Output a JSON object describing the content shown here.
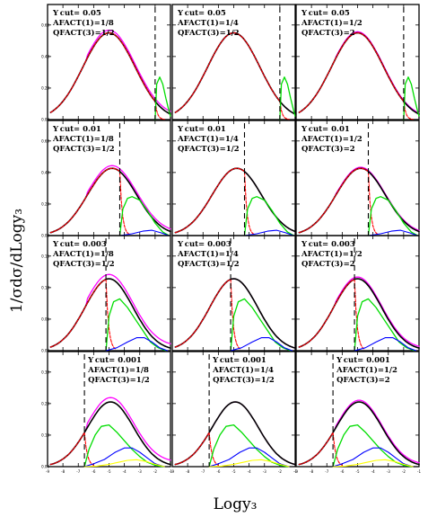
{
  "chart_data": {
    "type": "line",
    "layout": {
      "rows": 4,
      "cols": 3
    },
    "xlabel": "Logy₃",
    "ylabel": "1/σdσ/dLogy₃",
    "xlim": [
      -9,
      -1
    ],
    "x_tick_labels": [
      "-9",
      "-8",
      "-7",
      "-6",
      "-5",
      "-4",
      "-3",
      "-2",
      "-1"
    ],
    "series_colors": {
      "total": "#000000",
      "sum": "#ff00ff",
      "two_jet": "#ff0000",
      "three_jet": "#00dd00",
      "four_jet": "#0000ff",
      "five_jet": "#ffff00"
    },
    "rows": [
      {
        "ycut_label": "Y cut= 0.05",
        "ylim": [
          0,
          0.65
        ],
        "y_tick_labels": [
          "0.00",
          "0.20",
          "0.40",
          "0.60"
        ],
        "cut_logy": -2.0,
        "total": {
          "peak_x": -5.0,
          "peak_y": 0.49,
          "width": 1.7
        },
        "three_jet": {
          "x": [
            -2.0,
            -1.9,
            -1.7,
            -1.5,
            -1.3,
            -1.1,
            -1.0
          ],
          "y": [
            0.0,
            0.2,
            0.24,
            0.2,
            0.12,
            0.05,
            0.02
          ]
        },
        "four_jet": {
          "x": [],
          "y": []
        },
        "five_jet": {
          "x": [],
          "y": []
        }
      },
      {
        "ycut_label": "Y cut= 0.01",
        "ylim": [
          0,
          0.65
        ],
        "y_tick_labels": [
          "0.00",
          "0.20",
          "0.40",
          "0.60"
        ],
        "cut_logy": -4.3,
        "total": {
          "peak_x": -4.8,
          "peak_y": 0.38,
          "width": 1.6
        },
        "three_jet": {
          "x": [
            -4.3,
            -4.1,
            -3.8,
            -3.5,
            -3.0,
            -2.5,
            -2.0,
            -1.5,
            -1.1
          ],
          "y": [
            0.0,
            0.15,
            0.21,
            0.22,
            0.2,
            0.14,
            0.07,
            0.02,
            0.0
          ]
        },
        "four_jet": {
          "x": [
            -4.3,
            -3.5,
            -2.8,
            -2.2,
            -1.6,
            -1.1
          ],
          "y": [
            0.0,
            0.01,
            0.025,
            0.03,
            0.015,
            0.0
          ]
        },
        "five_jet": {
          "x": [],
          "y": []
        }
      },
      {
        "ycut_label": "Y cut= 0.003",
        "ylim": [
          0,
          0.4
        ],
        "y_tick_labels": [
          "0.00",
          "0.05",
          "0.10",
          "0.15"
        ],
        "cut_logy": -5.2,
        "total": {
          "peak_x": -5.0,
          "peak_y": 0.25,
          "width": 1.55
        },
        "three_jet": {
          "x": [
            -5.2,
            -5.0,
            -4.7,
            -4.3,
            -3.8,
            -3.3,
            -2.8,
            -2.3,
            -1.8,
            -1.3
          ],
          "y": [
            0.0,
            0.12,
            0.17,
            0.18,
            0.15,
            0.11,
            0.07,
            0.03,
            0.01,
            0.0
          ]
        },
        "four_jet": {
          "x": [
            -5.2,
            -4.5,
            -3.8,
            -3.2,
            -2.7,
            -2.2,
            -1.7,
            -1.2
          ],
          "y": [
            0.0,
            0.01,
            0.03,
            0.045,
            0.045,
            0.03,
            0.01,
            0.0
          ]
        },
        "five_jet": {
          "x": [],
          "y": []
        }
      },
      {
        "ycut_label": "Y cut= 0.001",
        "ylim": [
          0,
          0.4
        ],
        "y_tick_labels": [
          "0.00",
          "0.10",
          "0.20",
          "0.30"
        ],
        "cut_logy": -6.6,
        "total": {
          "peak_x": -4.9,
          "peak_y": 0.225,
          "width": 1.5
        },
        "three_jet": {
          "x": [
            -6.6,
            -6.3,
            -5.9,
            -5.5,
            -5.0,
            -4.5,
            -4.0,
            -3.5,
            -3.0,
            -2.5,
            -2.0,
            -1.5
          ],
          "y": [
            0.0,
            0.06,
            0.11,
            0.14,
            0.145,
            0.12,
            0.09,
            0.06,
            0.035,
            0.015,
            0.005,
            0.0
          ]
        },
        "four_jet": {
          "x": [
            -6.6,
            -6.0,
            -5.3,
            -4.6,
            -4.0,
            -3.5,
            -3.0,
            -2.5,
            -2.0,
            -1.4
          ],
          "y": [
            0.0,
            0.01,
            0.025,
            0.05,
            0.065,
            0.065,
            0.05,
            0.03,
            0.01,
            0.0
          ]
        },
        "five_jet": {
          "x": [
            -6.6,
            -5.8,
            -5.0,
            -4.4,
            -3.8,
            -3.2,
            -2.6,
            -2.0,
            -1.4
          ],
          "y": [
            0.0,
            0.002,
            0.008,
            0.015,
            0.022,
            0.024,
            0.018,
            0.008,
            0.0
          ]
        }
      }
    ],
    "cols": [
      {
        "afact_label": "AFACT(1)=1/8",
        "qfact_label": "QFACT(3)=1/2",
        "sum_offset": 0.015
      },
      {
        "afact_label": "AFACT(1)=1/4",
        "qfact_label": "QFACT(3)=1/2",
        "sum_offset": 0.0
      },
      {
        "afact_label": "AFACT(1)=1/2",
        "qfact_label": "QFACT(3)=2",
        "sum_offset": 0.006
      }
    ]
  }
}
